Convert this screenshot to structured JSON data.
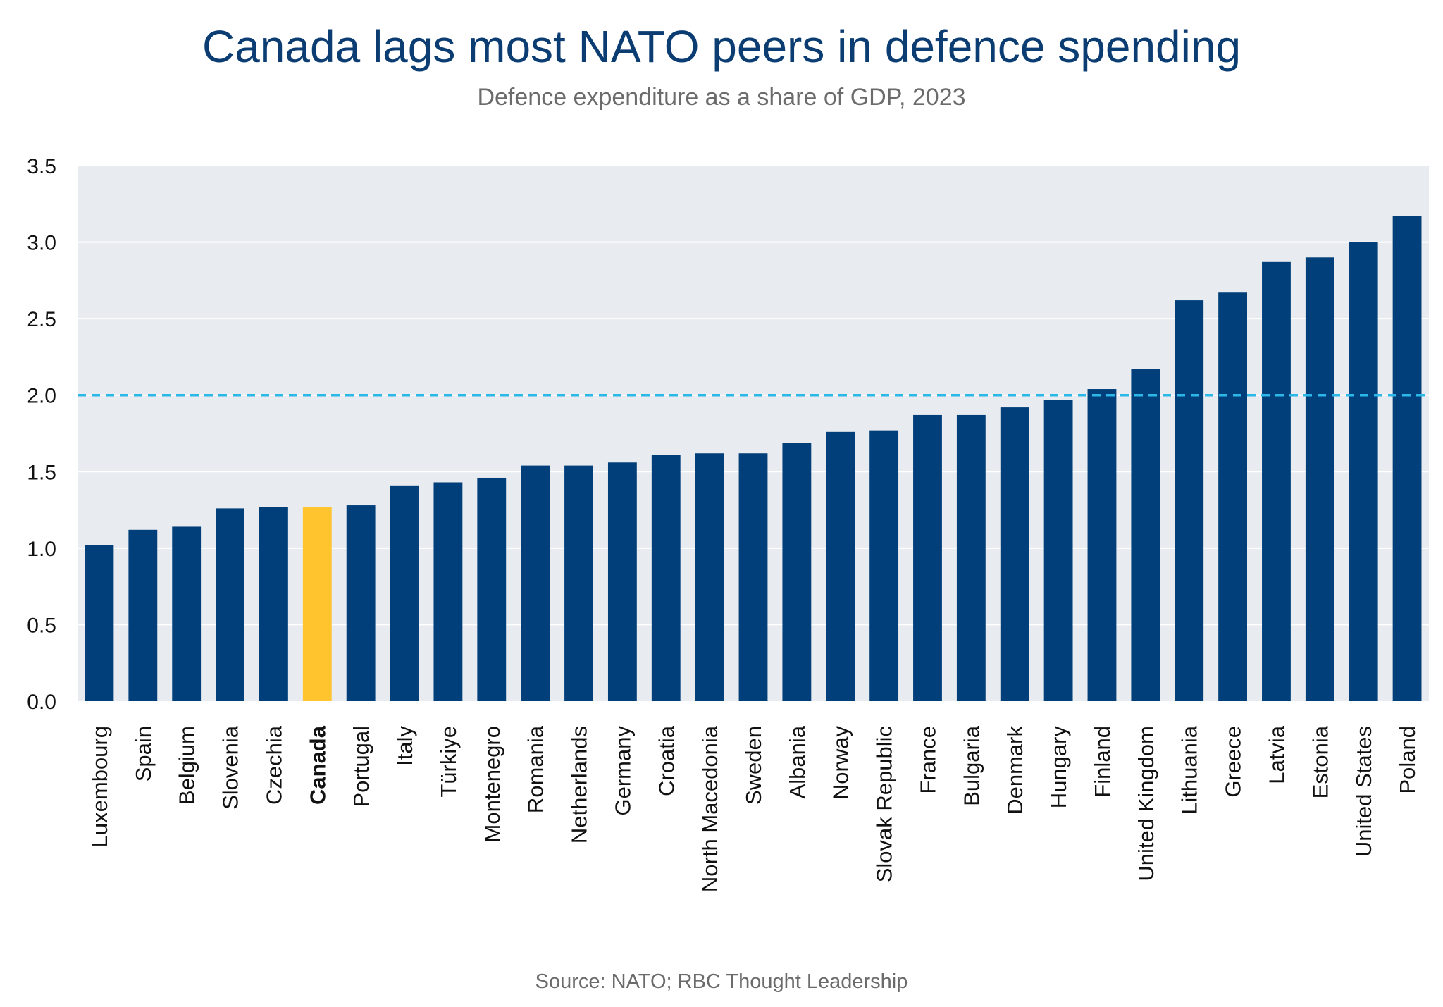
{
  "chart_data": {
    "type": "bar",
    "title": "Canada lags most NATO peers in defence spending",
    "subtitle": "Defence expenditure as a share of GDP, 2023",
    "source": "Source: NATO; RBC Thought Leadership",
    "xlabel": "",
    "ylabel": "",
    "ylim": [
      0,
      3.5
    ],
    "yticks": [
      "0.0",
      "0.5",
      "1.0",
      "1.5",
      "2.0",
      "2.5",
      "3.0",
      "3.5"
    ],
    "grid": true,
    "reference_line": 2.0,
    "highlight": "Canada",
    "categories": [
      "Luxembourg",
      "Spain",
      "Belgium",
      "Slovenia",
      "Czechia",
      "Canada",
      "Portugal",
      "Italy",
      "Türkiye",
      "Montenegro",
      "Romania",
      "Netherlands",
      "Germany",
      "Croatia",
      "North Macedonia",
      "Sweden",
      "Albania",
      "Norway",
      "Slovak Republic",
      "France",
      "Bulgaria",
      "Denmark",
      "Hungary",
      "Finland",
      "United Kingdom",
      "Lithuania",
      "Greece",
      "Latvia",
      "Estonia",
      "United States",
      "Poland"
    ],
    "values": [
      1.02,
      1.12,
      1.14,
      1.26,
      1.27,
      1.27,
      1.28,
      1.41,
      1.43,
      1.46,
      1.54,
      1.54,
      1.56,
      1.61,
      1.62,
      1.62,
      1.69,
      1.76,
      1.77,
      1.87,
      1.87,
      1.92,
      1.97,
      2.04,
      2.17,
      2.62,
      2.67,
      2.87,
      2.9,
      3.0,
      3.17
    ]
  },
  "colors": {
    "bar": "#003f7a",
    "highlight": "#ffc42e",
    "plot_background": "#e8ebef",
    "gridline": "#ffffff",
    "reference_line": "#2bb8e8",
    "title": "#0c3d72",
    "text": "#111111"
  }
}
